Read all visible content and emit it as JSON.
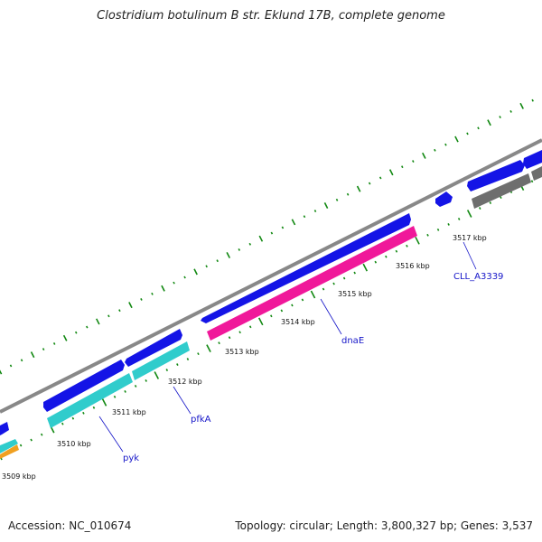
{
  "title": "Clostridium botulinum B str. Eklund 17B, complete genome",
  "footer": {
    "accession": "Accession: NC_010674",
    "summary": "Topology: circular; Length: 3,800,327 bp; Genes: 3,537"
  },
  "colors": {
    "backbone": "#888888",
    "cds_forward": "#1414e6",
    "pfkA_pyk": "#30cccc",
    "dnaE": "#f0189a",
    "cll_gene": "#6e6e6e",
    "orange_gene": "#f0a020",
    "ticks": "#118811",
    "label": "#1515c8"
  },
  "scale_labels": [
    "3509 kbp",
    "3510 kbp",
    "3511 kbp",
    "3512 kbp",
    "3513 kbp",
    "3514 kbp",
    "3515 kbp",
    "3516 kbp",
    "3517 kbp"
  ],
  "gene_labels": [
    {
      "name": "pyk"
    },
    {
      "name": "pfkA"
    },
    {
      "name": "dnaE"
    },
    {
      "name": "CLL_A3339"
    }
  ]
}
